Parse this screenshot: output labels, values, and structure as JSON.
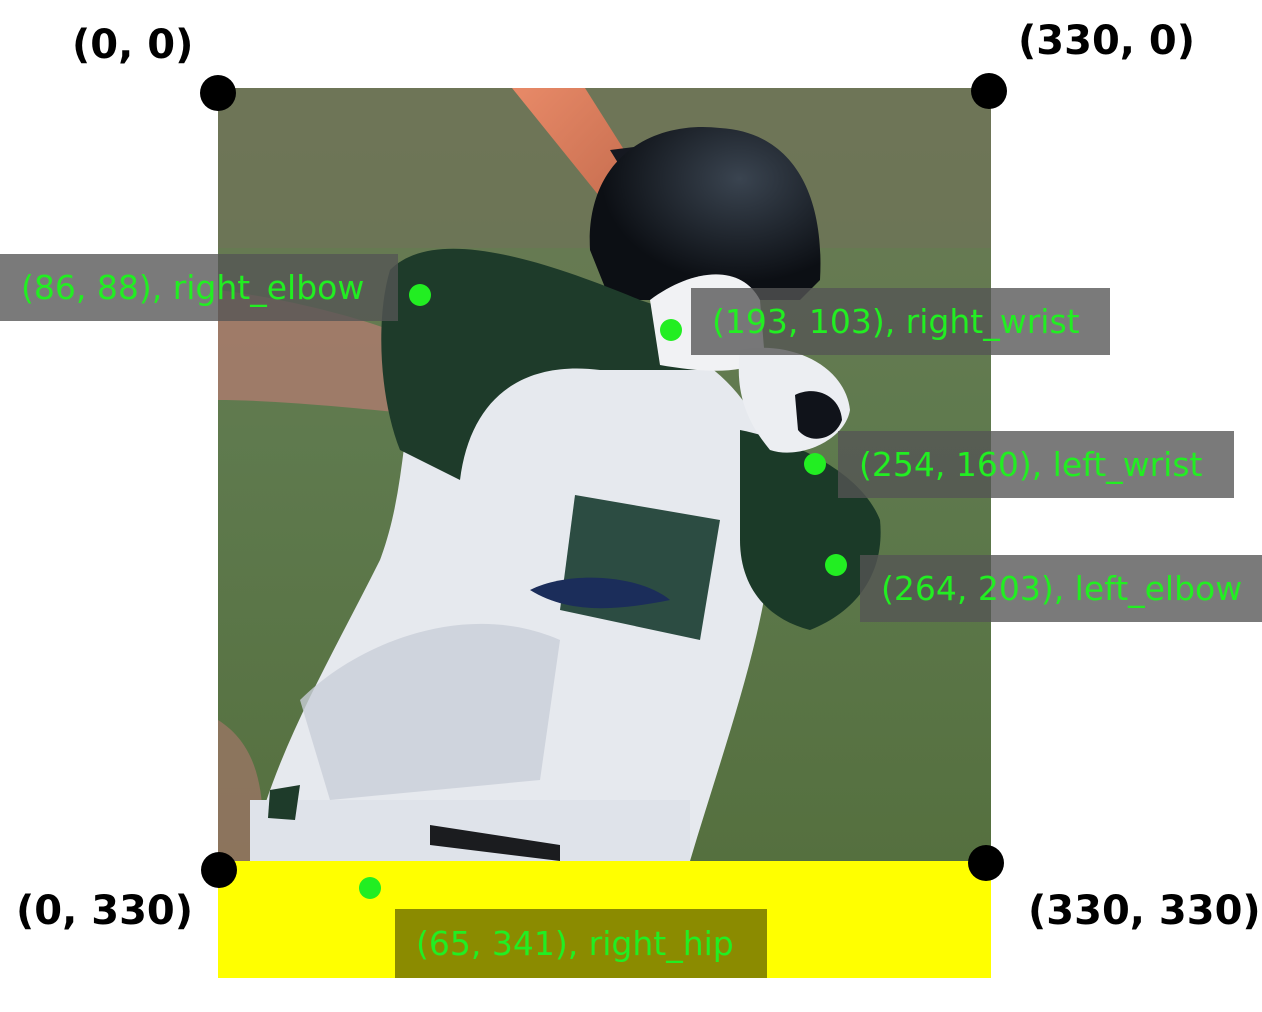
{
  "corners": {
    "top_left": "(0, 0)",
    "top_right": "(330, 0)",
    "bottom_left": "(0, 330)",
    "bottom_right": "(330, 330)"
  },
  "keypoints": {
    "right_elbow": "(86, 88), right_elbow",
    "right_wrist": "(193, 103), right_wrist",
    "left_wrist": "(254, 160), left_wrist",
    "left_elbow": "(264, 203), left_elbow",
    "right_hip": "(65, 341), right_hip"
  },
  "colors": {
    "keypoint": "#22ee22",
    "out_of_bounds_fill": "#ffff00",
    "corner_marker": "#000000"
  },
  "icons": {
    "corner_marker": "black-dot-icon",
    "keypoint_marker": "green-dot-icon"
  }
}
